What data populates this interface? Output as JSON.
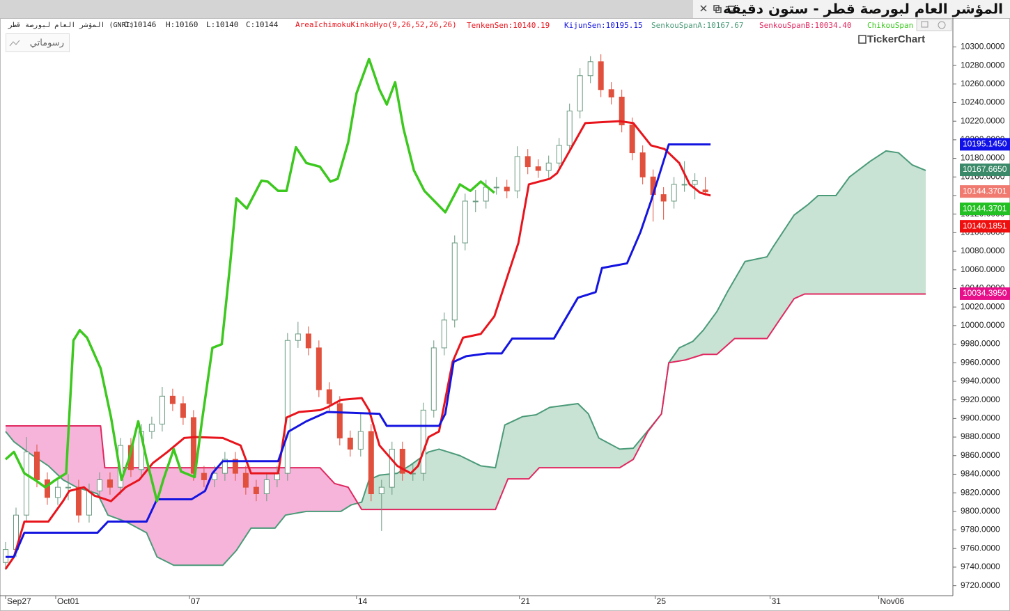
{
  "window_title": "المؤشر العام لبورصة قطر - ستون دقيقة",
  "drawings_button": "رسوماتي",
  "logo": "TickerChart",
  "chart_data": {
    "type": "candlestick",
    "symbol": "المؤشر العام لبورصة قطر (GNRI)",
    "info": [
      "O:10146",
      "H:10160",
      "L:10140",
      "C:10144"
    ],
    "indicator": "AreaIchimokuKinkoHyo(9,26,52,26,26)",
    "up_color": "#ffffff",
    "up_stroke": "#6a9a80",
    "down_color": "#e0503c",
    "open": [
      9745,
      9759,
      9796,
      9864,
      9834,
      9815,
      9826,
      9826,
      9796,
      9822,
      9834,
      9826,
      9871,
      9845,
      9886,
      9894,
      9924,
      9916,
      9901,
      9841,
      9834,
      9841,
      9856,
      9841,
      9826,
      9819,
      9834,
      9841,
      9984,
      9991,
      9976,
      9931,
      9916,
      9879,
      9867,
      9886,
      9819,
      9826,
      9867,
      9841,
      9841,
      9909,
      9976,
      10006,
      10089,
      10134,
      10134,
      10149,
      10149,
      10145,
      10182,
      10171,
      10167,
      10175,
      10194,
      10231,
      10269,
      10284,
      10254,
      10246,
      10216,
      10186,
      10160,
      10141,
      10134,
      10152,
      10152,
      10146
    ],
    "high": [
      9767,
      9804,
      9880,
      9872,
      9842,
      9834,
      9840,
      9834,
      9830,
      9842,
      9842,
      9879,
      9879,
      9894,
      9902,
      9934,
      9932,
      9924,
      9909,
      9849,
      9849,
      9864,
      9864,
      9849,
      9834,
      9842,
      9849,
      9992,
      10004,
      9999,
      9984,
      9939,
      9924,
      9887,
      9906,
      9894,
      9834,
      9875,
      9875,
      9851,
      9917,
      9984,
      10014,
      10097,
      10142,
      10146,
      10157,
      10160,
      10157,
      10193,
      10190,
      10179,
      10183,
      10202,
      10239,
      10277,
      10290,
      10292,
      10262,
      10254,
      10224,
      10194,
      10168,
      10149,
      10160,
      10177,
      10164,
      10160
    ],
    "low": [
      9737,
      9751,
      9788,
      9826,
      9807,
      9807,
      9812,
      9788,
      9788,
      9814,
      9818,
      9818,
      9837,
      9837,
      9878,
      9886,
      9908,
      9893,
      9833,
      9826,
      9826,
      9833,
      9833,
      9818,
      9811,
      9811,
      9826,
      9833,
      9976,
      9968,
      9923,
      9908,
      9871,
      9859,
      9859,
      9811,
      9779,
      9818,
      9833,
      9833,
      9833,
      9901,
      9968,
      9998,
      10081,
      10122,
      10126,
      10141,
      10137,
      10137,
      10163,
      10159,
      10159,
      10167,
      10186,
      10223,
      10261,
      10246,
      10238,
      10208,
      10178,
      10152,
      10112,
      10114,
      10126,
      10144,
      10136,
      10140
    ],
    "close": [
      9759,
      9796,
      9864,
      9834,
      9815,
      9826,
      9826,
      9796,
      9822,
      9834,
      9826,
      9871,
      9845,
      9886,
      9894,
      9924,
      9916,
      9901,
      9841,
      9834,
      9841,
      9856,
      9841,
      9826,
      9819,
      9834,
      9841,
      9984,
      9991,
      9976,
      9931,
      9916,
      9879,
      9867,
      9886,
      9819,
      9826,
      9867,
      9841,
      9841,
      9909,
      9976,
      10006,
      10089,
      10134,
      10134,
      10149,
      10149,
      10145,
      10182,
      10171,
      10167,
      10175,
      10194,
      10231,
      10269,
      10284,
      10254,
      10246,
      10216,
      10186,
      10160,
      10141,
      10134,
      10152,
      10152,
      10156,
      10144
    ],
    "lines": [
      {
        "label": "TenkenSen:10140.19",
        "color": "#e8141c",
        "width": 3,
        "x": [
          0,
          0.8,
          1.8,
          4.1,
          5.5,
          6.1,
          7.5,
          8.5,
          10.1,
          11.5,
          12.8,
          14.1,
          15.5,
          17.1,
          18.1,
          20.8,
          22.5,
          23.5,
          26.1,
          26.9,
          28.1,
          30.1,
          30.8,
          32.1,
          34.1,
          34.8,
          35.8,
          37.5,
          38.8,
          39.5,
          40.5,
          41.5,
          42.8,
          43.8,
          45.5,
          46.8,
          49.1,
          50.1,
          52.1,
          52.8,
          55.5,
          58.8,
          60.1,
          61.8,
          63.1,
          64.5,
          65.5,
          66.5,
          67.5
        ],
        "values": [
          9738,
          9751,
          9789,
          9789,
          9811,
          9822,
          9826,
          9817,
          9811,
          9826,
          9834,
          9852,
          9864,
          9879,
          9880,
          9879,
          9871,
          9841,
          9841,
          9901,
          9907,
          9909,
          9912,
          9920,
          9922,
          9909,
          9871,
          9849,
          9841,
          9849,
          9880,
          9886,
          9961,
          9987,
          9991,
          10010,
          10089,
          10152,
          10158,
          10164,
          10218,
          10220,
          10218,
          10194,
          10190,
          10175,
          10152,
          10143,
          10140
        ]
      },
      {
        "label": "KijunSen:10195.15",
        "color": "#1414e0",
        "width": 3,
        "x": [
          0,
          0.8,
          1.8,
          8.8,
          9.8,
          13.5,
          14.5,
          17.8,
          19.1,
          19.8,
          20.8,
          26.1,
          27.1,
          28.8,
          30.8,
          35.8,
          36.5,
          41.5,
          42.1,
          42.9,
          44.1,
          46.1,
          47.5,
          48.5,
          52.5,
          54.8,
          56.5,
          57.1,
          59.5,
          60.8,
          61.8,
          63.5,
          67.5
        ],
        "values": [
          9751,
          9751,
          9777,
          9777,
          9789,
          9789,
          9813,
          9813,
          9822,
          9841,
          9854,
          9854,
          9886,
          9897,
          9907,
          9905,
          9892,
          9892,
          9905,
          9961,
          9967,
          9970,
          9970,
          9986,
          9986,
          10030,
          10036,
          10062,
          10067,
          10101,
          10134,
          10195,
          10195
        ]
      },
      {
        "label": "ChikouSpan",
        "color": "#3cc81e",
        "width": 3.5,
        "x": [
          0,
          0.8,
          1.8,
          2.8,
          3.8,
          4.8,
          5.8,
          6.5,
          7.1,
          7.8,
          9.1,
          10.1,
          11.1,
          11.8,
          12.7,
          13.5,
          14.5,
          15.1,
          16.1,
          16.8,
          18.1,
          18.8,
          19.8,
          20.7,
          21.5,
          22.1,
          23.1,
          24.5,
          25.1,
          26.1,
          26.9,
          27.8,
          28.8,
          30.1,
          31.1,
          31.8,
          32.8,
          33.6,
          34.8,
          35.8,
          36.5,
          37.3,
          38.1,
          39.1,
          40.1,
          42.1,
          43.5,
          44.5,
          45.5,
          46.8
        ],
        "values": [
          9856,
          9864,
          9841,
          9834,
          9826,
          9834,
          9841,
          9984,
          9995,
          9987,
          9954,
          9901,
          9834,
          9856,
          9897,
          9856,
          9811,
          9834,
          9867,
          9843,
          9837,
          9897,
          9976,
          9980,
          10066,
          10137,
          10126,
          10156,
          10155,
          10145,
          10145,
          10192,
          10175,
          10171,
          10155,
          10158,
          10197,
          10250,
          10287,
          10254,
          10238,
          10262,
          10212,
          10167,
          10145,
          10122,
          10152,
          10145,
          10155,
          10143
        ]
      },
      {
        "label": "SenkouSpanA:10167.67",
        "color": "#4a9a78",
        "width": 2,
        "x": [
          0,
          0.8,
          2.1,
          4.1,
          5.5,
          6.8,
          8.8,
          9.8,
          11.5,
          13.5,
          14.5,
          16.1,
          20.8,
          22.1,
          23.5,
          25.8,
          26.8,
          28.8,
          32.1,
          33.1,
          34.1,
          34.8,
          35.8,
          37.5,
          38.8,
          40.5,
          41.5,
          43.5,
          45.5,
          46.9,
          47.8,
          49.5,
          50.8,
          52.1,
          54.8,
          55.8,
          56.8,
          58.8,
          60.1,
          61.5,
          62.8,
          63.5,
          64.5,
          65.8,
          66.8,
          68.1,
          69.1,
          70.8,
          72.9,
          73.5,
          75.5,
          76.8,
          77.8,
          79.5,
          80.8,
          82.8,
          84.3,
          85.5,
          86.8,
          88.1
        ],
        "values": [
          9886,
          9875,
          9864,
          9849,
          9834,
          9826,
          9819,
          9796,
          9789,
          9777,
          9751,
          9742,
          9742,
          9758,
          9782,
          9782,
          9796,
          9800,
          9800,
          9807,
          9810,
          9834,
          9839,
          9841,
          9850,
          9864,
          9867,
          9860,
          9849,
          9847,
          9893,
          9902,
          9904,
          9912,
          9916,
          9905,
          9879,
          9867,
          9868,
          9887,
          9905,
          9960,
          9976,
          9983,
          9995,
          10015,
          10036,
          10069,
          10074,
          10085,
          10119,
          10130,
          10140,
          10140,
          10160,
          10177,
          10188,
          10186,
          10173,
          10167
        ]
      },
      {
        "label": "SenkouSpanB:10034.40",
        "color": "#e02860",
        "width": 2,
        "x": [
          0,
          9.1,
          9.5,
          30.1,
          31.5,
          32.8,
          34.1,
          46.9,
          48.1,
          50.1,
          51.1,
          58.8,
          60.1,
          61.5,
          62.8,
          63.5,
          65.1,
          66.8,
          68.1,
          69.8,
          72.9,
          74.1,
          75.5,
          76.5,
          88.1
        ],
        "values": [
          9892,
          9892,
          9847,
          9847,
          9830,
          9826,
          9802,
          9802,
          9835,
          9835,
          9847,
          9847,
          9856,
          9886,
          9905,
          9960,
          9963,
          9969,
          9969,
          9986,
          9986,
          10006,
          10029,
          10034,
          10034
        ]
      }
    ],
    "cloud_up_color": "#c8e2d4",
    "cloud_down_color": "#f6b4da",
    "xlim": [
      -0.2,
      90.7
    ],
    "xticks": [
      {
        "value": 0,
        "label": "Sep27"
      },
      {
        "value": 4.8,
        "label": "Oct01"
      },
      {
        "value": 17.6,
        "label": "07"
      },
      {
        "value": 33.6,
        "label": "14"
      },
      {
        "value": 49.2,
        "label": "21"
      },
      {
        "value": 62.2,
        "label": "25"
      },
      {
        "value": 73.2,
        "label": "31"
      },
      {
        "value": 83.6,
        "label": "Nov06"
      }
    ],
    "ylim": [
      9710,
      10331
    ],
    "yticks": [
      {
        "value": 9720,
        "label": "9720.0000"
      },
      {
        "value": 9740,
        "label": "9740.0000"
      },
      {
        "value": 9760,
        "label": "9760.0000"
      },
      {
        "value": 9780,
        "label": "9780.0000"
      },
      {
        "value": 9800,
        "label": "9800.0000"
      },
      {
        "value": 9820,
        "label": "9820.0000"
      },
      {
        "value": 9840,
        "label": "9840.0000"
      },
      {
        "value": 9860,
        "label": "9860.0000"
      },
      {
        "value": 9880,
        "label": "9880.0000"
      },
      {
        "value": 9900,
        "label": "9900.0000"
      },
      {
        "value": 9920,
        "label": "9920.0000"
      },
      {
        "value": 9940,
        "label": "9940.0000"
      },
      {
        "value": 9960,
        "label": "9960.0000"
      },
      {
        "value": 9980,
        "label": "9980.0000"
      },
      {
        "value": 10000,
        "label": "10000.0000"
      },
      {
        "value": 10020,
        "label": "10020.0000"
      },
      {
        "value": 10040,
        "label": "10040.0000"
      },
      {
        "value": 10060,
        "label": "10060.0000"
      },
      {
        "value": 10080,
        "label": "10080.0000"
      },
      {
        "value": 10100,
        "label": "10100.0000"
      },
      {
        "value": 10120,
        "label": "10120.0000"
      },
      {
        "value": 10140,
        "label": "10140.0000"
      },
      {
        "value": 10160,
        "label": "10160.0000"
      },
      {
        "value": 10180,
        "label": "10180.0000"
      },
      {
        "value": 10200,
        "label": "10200.0000"
      },
      {
        "value": 10220,
        "label": "10220.0000"
      },
      {
        "value": 10240,
        "label": "10240.0000"
      },
      {
        "value": 10260,
        "label": "10260.0000"
      },
      {
        "value": 10280,
        "label": "10280.0000"
      },
      {
        "value": 10300,
        "label": "10300.0000"
      }
    ],
    "price_tags": [
      {
        "value": 10195.145,
        "label": "10195.1450",
        "color": "#1010e8"
      },
      {
        "value": 10167.665,
        "label": "10167.6650",
        "color": "#3a8a6a"
      },
      {
        "value": 10144.3701,
        "label": "10144.3701",
        "color": "#f07a70"
      },
      {
        "value": 10144.3701,
        "label": "10144.3701",
        "color": "#22c022"
      },
      {
        "value": 10140.1851,
        "label": "10140.1851",
        "color": "#f00f0f"
      },
      {
        "value": 10034.395,
        "label": "10034.3950",
        "color": "#e8108a"
      }
    ]
  }
}
